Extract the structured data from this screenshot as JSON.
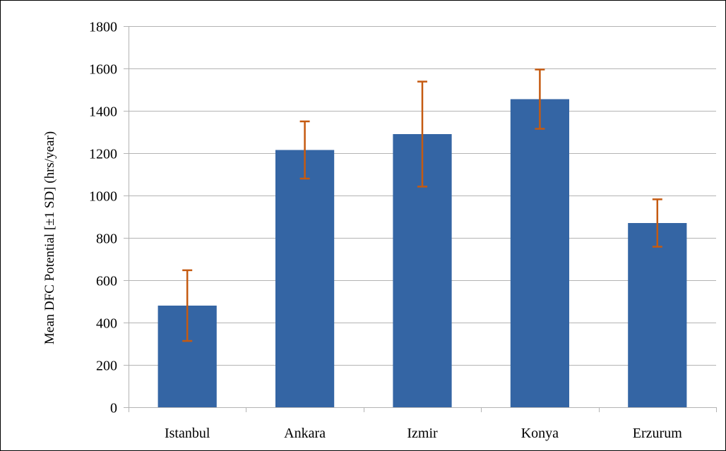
{
  "chart_data": {
    "type": "bar",
    "title": "",
    "xlabel": "",
    "ylabel": "Mean DFC Potential [±1 SD] (hrs/year)",
    "categories": [
      "Istanbul",
      "Ankara",
      "Izmir",
      "Konya",
      "Erzurum"
    ],
    "series": [
      {
        "values": [
          480,
          1215,
          1290,
          1455,
          870
        ],
        "error": [
          167,
          135,
          248,
          140,
          112
        ]
      }
    ],
    "ylim": [
      0,
      1800
    ],
    "yticks": [
      0,
      200,
      400,
      600,
      800,
      1000,
      1200,
      1400,
      1600,
      1800
    ],
    "grid": true,
    "legend": "none",
    "colors": {
      "bar": "#3465a4",
      "error_bar": "#c55a11",
      "grid": "#b3b3b3",
      "axis": "#b3b3b3",
      "frame": "#000000"
    }
  }
}
